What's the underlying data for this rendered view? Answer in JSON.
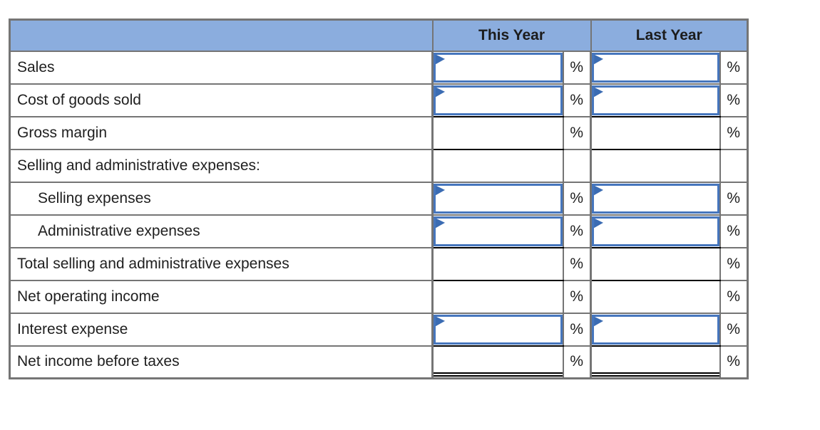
{
  "table": {
    "header": {
      "blank_label": "",
      "this_year": "This Year",
      "last_year": "Last Year"
    },
    "rows": [
      {
        "label": "Sales",
        "unit": "%",
        "editable": true,
        "this_year_value": "",
        "last_year_value": ""
      },
      {
        "label": "Cost of goods sold",
        "unit": "%",
        "editable": true,
        "this_year_value": "",
        "last_year_value": ""
      },
      {
        "label": "Gross margin",
        "unit": "%",
        "editable": false,
        "this_year_value": "",
        "last_year_value": ""
      },
      {
        "label": "Selling and administrative expenses:",
        "unit": "",
        "editable": false,
        "this_year_value": "",
        "last_year_value": ""
      },
      {
        "label": "Selling expenses",
        "unit": "%",
        "editable": true,
        "this_year_value": "",
        "last_year_value": ""
      },
      {
        "label": "Administrative expenses",
        "unit": "%",
        "editable": true,
        "this_year_value": "",
        "last_year_value": ""
      },
      {
        "label": "Total selling and administrative expenses",
        "unit": "%",
        "editable": false,
        "this_year_value": "",
        "last_year_value": ""
      },
      {
        "label": "Net operating income",
        "unit": "%",
        "editable": false,
        "this_year_value": "",
        "last_year_value": ""
      },
      {
        "label": "Interest expense",
        "unit": "%",
        "editable": true,
        "this_year_value": "",
        "last_year_value": ""
      },
      {
        "label": "Net income before taxes",
        "unit": "%",
        "editable": false,
        "this_year_value": "",
        "last_year_value": ""
      }
    ]
  },
  "colors": {
    "header_bg": "#8badde",
    "border_gray": "#757575",
    "input_border": "#4676bd",
    "input_flag": "#3b6cb3",
    "accounting_line": "#000000",
    "text": "#202020",
    "page_bg": "#ffffff"
  }
}
